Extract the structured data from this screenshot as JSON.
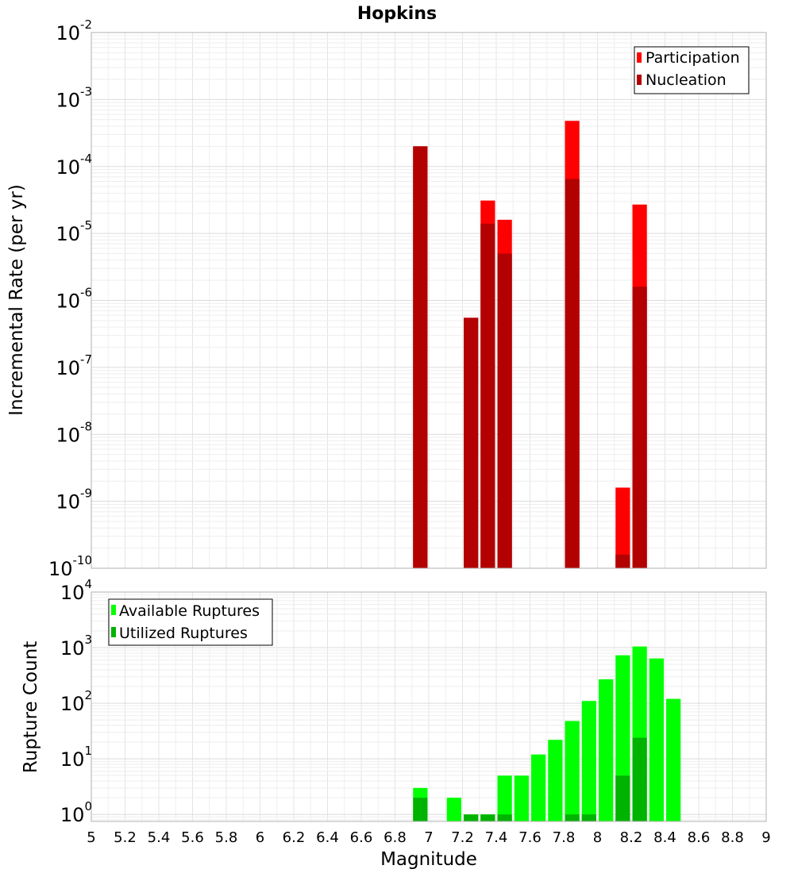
{
  "chart_data": [
    {
      "type": "bar",
      "title": "Hopkins",
      "xlabel": "",
      "ylabel": "Incremental Rate (per yr)",
      "y_scale": "log",
      "ylim": [
        1e-10,
        0.01
      ],
      "xlim": [
        5,
        9
      ],
      "legend_position": "top-right",
      "grid": true,
      "series": [
        {
          "name": "Participation",
          "color": "#ff0000",
          "points": [
            {
              "x": 6.95,
              "y": 0.0002
            },
            {
              "x": 7.25,
              "y": 5.5e-07
            },
            {
              "x": 7.35,
              "y": 3.1e-05
            },
            {
              "x": 7.45,
              "y": 1.6e-05
            },
            {
              "x": 7.85,
              "y": 0.00048
            },
            {
              "x": 8.15,
              "y": 1.6e-09
            },
            {
              "x": 8.25,
              "y": 2.7e-05
            }
          ]
        },
        {
          "name": "Nucleation",
          "color": "#b30000",
          "points": [
            {
              "x": 6.95,
              "y": 0.0002
            },
            {
              "x": 7.25,
              "y": 5.5e-07
            },
            {
              "x": 7.35,
              "y": 1.4e-05
            },
            {
              "x": 7.45,
              "y": 5e-06
            },
            {
              "x": 7.85,
              "y": 6.5e-05
            },
            {
              "x": 8.15,
              "y": 1.6e-10
            },
            {
              "x": 8.25,
              "y": 1.6e-06
            }
          ]
        }
      ]
    },
    {
      "type": "bar",
      "title": "",
      "xlabel": "Magnitude",
      "ylabel": "Rupture Count",
      "y_scale": "log",
      "ylim": [
        0.75,
        10000
      ],
      "xlim": [
        5,
        9
      ],
      "legend_position": "top-left",
      "grid": true,
      "x_ticks": [
        "5",
        "5.2",
        "5.4",
        "5.6",
        "5.8",
        "6",
        "6.2",
        "6.4",
        "6.6",
        "6.8",
        "7",
        "7.2",
        "7.4",
        "7.6",
        "7.8",
        "8",
        "8.2",
        "8.4",
        "8.6",
        "8.8",
        "9"
      ],
      "series": [
        {
          "name": "Available Ruptures",
          "color": "#00ff00",
          "points": [
            {
              "x": 6.95,
              "y": 3
            },
            {
              "x": 7.15,
              "y": 2
            },
            {
              "x": 7.25,
              "y": 1
            },
            {
              "x": 7.35,
              "y": 1
            },
            {
              "x": 7.45,
              "y": 5
            },
            {
              "x": 7.55,
              "y": 5
            },
            {
              "x": 7.65,
              "y": 12
            },
            {
              "x": 7.75,
              "y": 22
            },
            {
              "x": 7.85,
              "y": 48
            },
            {
              "x": 7.95,
              "y": 110
            },
            {
              "x": 8.05,
              "y": 270
            },
            {
              "x": 8.15,
              "y": 730
            },
            {
              "x": 8.25,
              "y": 1050
            },
            {
              "x": 8.35,
              "y": 640
            },
            {
              "x": 8.45,
              "y": 120
            }
          ]
        },
        {
          "name": "Utilized Ruptures",
          "color": "#00b300",
          "points": [
            {
              "x": 6.95,
              "y": 2
            },
            {
              "x": 7.25,
              "y": 1
            },
            {
              "x": 7.35,
              "y": 1
            },
            {
              "x": 7.45,
              "y": 1
            },
            {
              "x": 7.85,
              "y": 1
            },
            {
              "x": 7.95,
              "y": 1
            },
            {
              "x": 8.15,
              "y": 5
            },
            {
              "x": 8.25,
              "y": 24
            }
          ]
        }
      ]
    }
  ]
}
